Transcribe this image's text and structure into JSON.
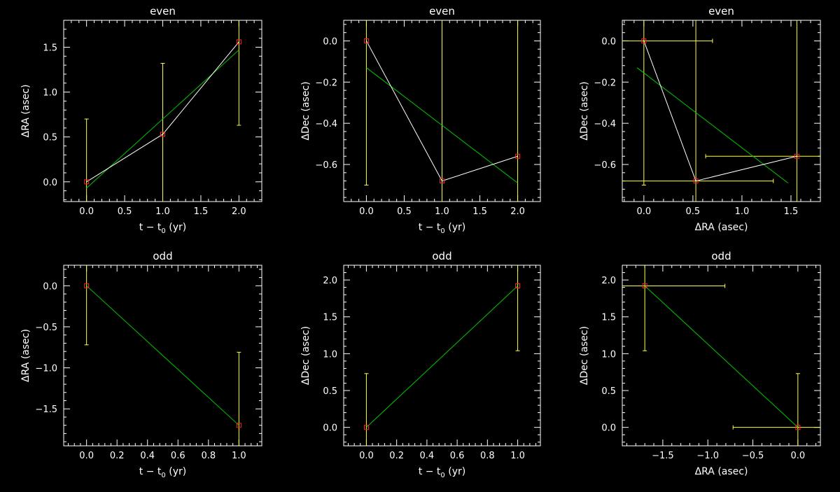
{
  "chart_data": [
    {
      "type": "scatter",
      "title": "even",
      "xlabel": "t − t",
      "xlabel_sub": "0",
      "xlabel_tail": " (yr)",
      "ylabel": "ΔRA (asec)",
      "xlim": [
        -0.3,
        2.3
      ],
      "ylim": [
        -0.22,
        1.8
      ],
      "xticks": [
        0.0,
        0.5,
        1.0,
        1.5,
        2.0
      ],
      "xticklabels": [
        "0.0",
        "0.5",
        "1.0",
        "1.5",
        "2.0"
      ],
      "yticks": [
        0.0,
        0.5,
        1.0,
        1.5
      ],
      "yticklabels": [
        "0.0",
        "0.5",
        "1.0",
        "1.5"
      ],
      "points": [
        {
          "x": 0.0,
          "y": 0.0,
          "yerr": 0.7
        },
        {
          "x": 1.0,
          "y": 0.53,
          "yerr": 0.79
        },
        {
          "x": 2.0,
          "y": 1.56,
          "yerr": 0.93
        }
      ],
      "fit": [
        [
          0.0,
          -0.07
        ],
        [
          2.0,
          1.47
        ]
      ]
    },
    {
      "type": "scatter",
      "title": "even",
      "xlabel": "t − t",
      "xlabel_sub": "0",
      "xlabel_tail": " (yr)",
      "ylabel": "ΔDec (asec)",
      "xlim": [
        -0.3,
        2.3
      ],
      "ylim": [
        -0.78,
        0.1
      ],
      "xticks": [
        0.0,
        0.5,
        1.0,
        1.5,
        2.0
      ],
      "xticklabels": [
        "0.0",
        "0.5",
        "1.0",
        "1.5",
        "2.0"
      ],
      "yticks": [
        0.0,
        -0.2,
        -0.4,
        -0.6
      ],
      "yticklabels": [
        "0.0",
        "−0.2",
        "−0.4",
        "−0.6"
      ],
      "points": [
        {
          "x": 0.0,
          "y": 0.0,
          "yerr": 0.7
        },
        {
          "x": 1.0,
          "y": -0.68,
          "yerr": 0.9
        },
        {
          "x": 2.0,
          "y": -0.56,
          "yerr": 0.9
        }
      ],
      "fit": [
        [
          0.0,
          -0.13
        ],
        [
          2.0,
          -0.69
        ]
      ]
    },
    {
      "type": "scatter",
      "title": "even",
      "xlabel": "ΔRA (asec)",
      "ylabel": "ΔDec (asec)",
      "xlim": [
        -0.22,
        1.8
      ],
      "ylim": [
        -0.78,
        0.1
      ],
      "xticks": [
        0.0,
        0.5,
        1.0,
        1.5
      ],
      "xticklabels": [
        "0.0",
        "0.5",
        "1.0",
        "1.5"
      ],
      "yticks": [
        0.0,
        -0.2,
        -0.4,
        -0.6
      ],
      "yticklabels": [
        "0.0",
        "−0.2",
        "−0.4",
        "−0.6"
      ],
      "points": [
        {
          "x": 0.0,
          "y": 0.0,
          "xerr": 0.7,
          "yerr": 0.7
        },
        {
          "x": 0.53,
          "y": -0.68,
          "xerr": 0.79,
          "yerr": 0.9
        },
        {
          "x": 1.56,
          "y": -0.56,
          "xerr": 0.93,
          "yerr": 0.9
        }
      ],
      "fit": [
        [
          -0.07,
          -0.13
        ],
        [
          1.47,
          -0.69
        ]
      ]
    },
    {
      "type": "scatter",
      "title": "odd",
      "xlabel": "t − t",
      "xlabel_sub": "0",
      "xlabel_tail": " (yr)",
      "ylabel": "ΔRA (asec)",
      "xlim": [
        -0.15,
        1.15
      ],
      "ylim": [
        -1.95,
        0.25
      ],
      "xticks": [
        0.0,
        0.2,
        0.4,
        0.6,
        0.8,
        1.0
      ],
      "xticklabels": [
        "0.0",
        "0.2",
        "0.4",
        "0.6",
        "0.8",
        "1.0"
      ],
      "yticks": [
        0.0,
        -0.5,
        -1.0,
        -1.5
      ],
      "yticklabels": [
        "0.0",
        "−0.5",
        "−1.0",
        "−1.5"
      ],
      "points": [
        {
          "x": 0.0,
          "y": 0.0,
          "yerr": 0.72
        },
        {
          "x": 1.0,
          "y": -1.7,
          "yerr": 0.89
        }
      ],
      "fit": [
        [
          0.0,
          0.0
        ],
        [
          1.0,
          -1.7
        ]
      ]
    },
    {
      "type": "scatter",
      "title": "odd",
      "xlabel": "t − t",
      "xlabel_sub": "0",
      "xlabel_tail": " (yr)",
      "ylabel": "ΔDec (asec)",
      "xlim": [
        -0.15,
        1.15
      ],
      "ylim": [
        -0.25,
        2.2
      ],
      "xticks": [
        0.0,
        0.2,
        0.4,
        0.6,
        0.8,
        1.0
      ],
      "xticklabels": [
        "0.0",
        "0.2",
        "0.4",
        "0.6",
        "0.8",
        "1.0"
      ],
      "yticks": [
        0.0,
        0.5,
        1.0,
        1.5,
        2.0
      ],
      "yticklabels": [
        "0.0",
        "0.5",
        "1.0",
        "1.5",
        "2.0"
      ],
      "points": [
        {
          "x": 0.0,
          "y": 0.0,
          "yerr": 0.73
        },
        {
          "x": 1.0,
          "y": 1.92,
          "yerr": 0.88
        }
      ],
      "fit": [
        [
          0.0,
          0.0
        ],
        [
          1.0,
          1.92
        ]
      ]
    },
    {
      "type": "scatter",
      "title": "odd",
      "xlabel": "ΔRA (asec)",
      "ylabel": "ΔDec (asec)",
      "xlim": [
        -1.95,
        0.25
      ],
      "ylim": [
        -0.25,
        2.2
      ],
      "xticks": [
        -1.5,
        -1.0,
        -0.5,
        0.0
      ],
      "xticklabels": [
        "−1.5",
        "−1.0",
        "−0.5",
        "0.0"
      ],
      "yticks": [
        0.0,
        0.5,
        1.0,
        1.5,
        2.0
      ],
      "yticklabels": [
        "0.0",
        "0.5",
        "1.0",
        "1.5",
        "2.0"
      ],
      "points": [
        {
          "x": 0.0,
          "y": 0.0,
          "xerr": 0.72,
          "yerr": 0.73
        },
        {
          "x": -1.7,
          "y": 1.92,
          "xerr": 0.89,
          "yerr": 0.88
        }
      ],
      "fit": [
        [
          0.0,
          0.0
        ],
        [
          -1.7,
          1.92
        ]
      ]
    }
  ],
  "colors": {
    "background": "#000000",
    "axes": "#ffffff",
    "data_line": "#ffffff",
    "fit_line": "#00c800",
    "error_bar": "#ffff40",
    "marker": "#ff2020"
  }
}
